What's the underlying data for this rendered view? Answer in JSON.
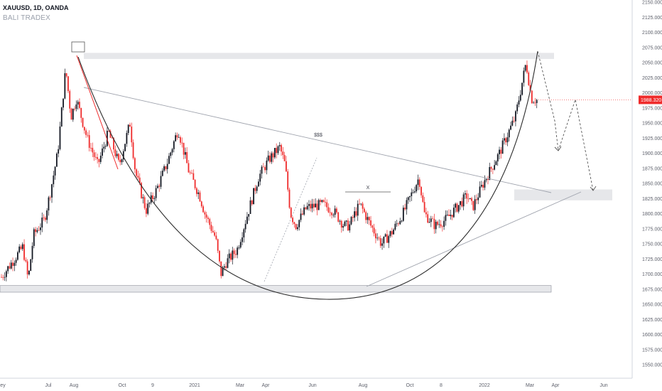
{
  "header": {
    "ticker": "XAUUSD, 1D, OANDA",
    "watermark": "BALI TRADEX"
  },
  "colors": {
    "up": "#131722",
    "down": "#ef2b2b",
    "price_tag": "#ef2b2b",
    "zone_fill": "#e6e7ea",
    "trendline": "#9fa3ad",
    "cup_curve": "#2b2b2b",
    "projection": "#555555"
  },
  "chart_data": {
    "type": "candlestick",
    "title": "",
    "xlabel": "",
    "ylabel": "",
    "ylim": [
      1540,
      2155
    ],
    "price_axis_ticks": [
      "2150.000",
      "2125.000",
      "2100.000",
      "2075.000",
      "2050.000",
      "2025.000",
      "2000.000",
      "1975.000",
      "1950.000",
      "1925.000",
      "1900.000",
      "1875.000",
      "1850.000",
      "1825.000",
      "1800.000",
      "1775.000",
      "1750.000",
      "1725.000",
      "1700.000",
      "1675.000",
      "1650.000",
      "1625.000",
      "1600.000",
      "1575.000",
      "1550.000"
    ],
    "time_axis_ticks": [
      "ey",
      "Jul",
      "Aug",
      "Oct",
      "9",
      "2021",
      "Mar",
      "Apr",
      "Jun",
      "Aug",
      "Oct",
      "8",
      "2022",
      "Mar",
      "Apr",
      "Jun"
    ],
    "current_price": "1988.320",
    "price_path": [
      [
        0,
        1695
      ],
      [
        0.02,
        1720
      ],
      [
        0.04,
        1745
      ],
      [
        0.05,
        1690
      ],
      [
        0.06,
        1765
      ],
      [
        0.08,
        1790
      ],
      [
        0.09,
        1830
      ],
      [
        0.105,
        1900
      ],
      [
        0.12,
        2040
      ],
      [
        0.13,
        1960
      ],
      [
        0.14,
        1990
      ],
      [
        0.16,
        1925
      ],
      [
        0.18,
        1880
      ],
      [
        0.2,
        1935
      ],
      [
        0.22,
        1880
      ],
      [
        0.24,
        1950
      ],
      [
        0.25,
        1870
      ],
      [
        0.27,
        1805
      ],
      [
        0.29,
        1840
      ],
      [
        0.31,
        1885
      ],
      [
        0.33,
        1940
      ],
      [
        0.35,
        1870
      ],
      [
        0.37,
        1830
      ],
      [
        0.38,
        1800
      ],
      [
        0.4,
        1760
      ],
      [
        0.41,
        1700
      ],
      [
        0.42,
        1720
      ],
      [
        0.44,
        1740
      ],
      [
        0.46,
        1800
      ],
      [
        0.48,
        1860
      ],
      [
        0.5,
        1890
      ],
      [
        0.52,
        1910
      ],
      [
        0.53,
        1880
      ],
      [
        0.54,
        1800
      ],
      [
        0.55,
        1780
      ],
      [
        0.57,
        1810
      ],
      [
        0.6,
        1815
      ],
      [
        0.62,
        1805
      ],
      [
        0.64,
        1780
      ],
      [
        0.65,
        1780
      ],
      [
        0.66,
        1800
      ],
      [
        0.67,
        1815
      ],
      [
        0.69,
        1780
      ],
      [
        0.71,
        1750
      ],
      [
        0.73,
        1770
      ],
      [
        0.75,
        1800
      ],
      [
        0.77,
        1840
      ],
      [
        0.78,
        1860
      ],
      [
        0.79,
        1800
      ],
      [
        0.81,
        1780
      ],
      [
        0.83,
        1790
      ],
      [
        0.85,
        1810
      ],
      [
        0.87,
        1830
      ],
      [
        0.88,
        1810
      ],
      [
        0.9,
        1850
      ],
      [
        0.93,
        1900
      ],
      [
        0.96,
        1960
      ],
      [
        0.98,
        2050
      ],
      [
        0.99,
        1990
      ],
      [
        1,
        1988
      ]
    ],
    "annotations": [
      {
        "type": "zone",
        "label": "",
        "y0": 2056,
        "y1": 2066
      },
      {
        "type": "zone",
        "label": "",
        "y0": 1670,
        "y1": 1681
      },
      {
        "type": "zone",
        "label": "",
        "y0": 1822,
        "y1": 1840
      },
      {
        "type": "label",
        "label": "$$$",
        "x": "Jun 2021"
      },
      {
        "type": "label",
        "label": "X",
        "x": "Aug 2021"
      },
      {
        "type": "curve",
        "label": "",
        "shape": "cup"
      },
      {
        "type": "projection",
        "label": "",
        "style": "dashed"
      }
    ]
  }
}
